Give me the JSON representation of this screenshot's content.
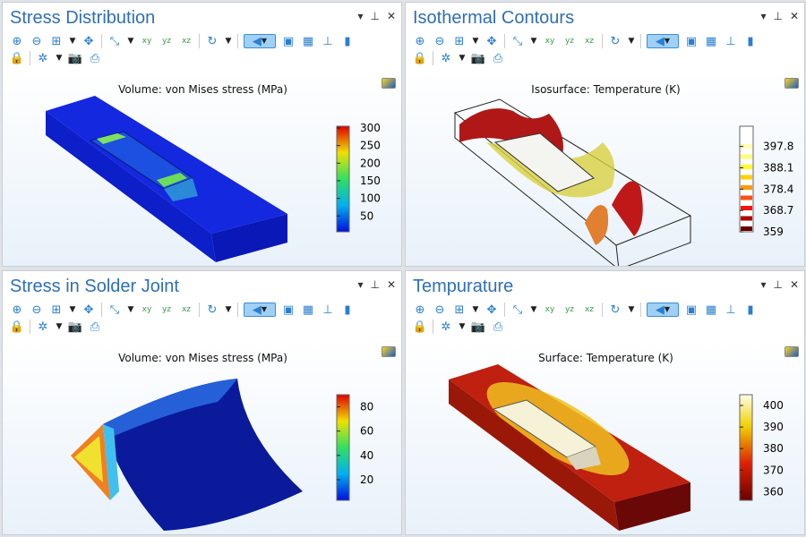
{
  "panels": [
    {
      "title": "Stress Distribution",
      "plot_title": "Volume: von Mises stress (MPa)",
      "colorbar": {
        "scheme": "rainbow",
        "min": 5,
        "max": 305,
        "ticks": [
          "300",
          "250",
          "200",
          "150",
          "100",
          "50"
        ],
        "tick_values": [
          300,
          250,
          200,
          150,
          100,
          50
        ]
      }
    },
    {
      "title": "Isothermal Contours",
      "plot_title": "Isosurface: Temperature (K)",
      "colorbar": {
        "scheme": "heat-discrete",
        "min": 359,
        "max": 407,
        "ticks": [
          "397.8",
          "388.1",
          "378.4",
          "368.7",
          "359"
        ],
        "tick_values": [
          397.8,
          388.1,
          378.4,
          368.7,
          359
        ]
      }
    },
    {
      "title": "Stress in Solder Joint",
      "plot_title": "Volume: von Mises stress (MPa)",
      "colorbar": {
        "scheme": "rainbow",
        "min": 3,
        "max": 90,
        "ticks": [
          "80",
          "60",
          "40",
          "20"
        ],
        "tick_values": [
          80,
          60,
          40,
          20
        ]
      }
    },
    {
      "title": "Tempurature",
      "plot_title": "Surface: Temperature (K)",
      "colorbar": {
        "scheme": "heat",
        "min": 356,
        "max": 405,
        "ticks": [
          "400",
          "390",
          "380",
          "370",
          "360"
        ],
        "tick_values": [
          400,
          390,
          380,
          370,
          360
        ]
      }
    }
  ],
  "toolbar_row1": [
    "zoom-in-icon",
    "zoom-out-icon",
    "zoom-box-icon",
    "dropdown",
    "zoom-extents-icon",
    "sep",
    "axes-view-icon",
    "dropdown",
    "xy-view-icon",
    "yz-view-icon",
    "xz-view-icon",
    "sep",
    "rotate-icon",
    "dropdown",
    "sep",
    "light-icon",
    "transparency-icon",
    "grid-icon",
    "axis-orientation-icon",
    "legend-icon"
  ],
  "toolbar_row2": [
    "lock-icon",
    "sep",
    "scene-light-icon",
    "dropdown",
    "camera-icon",
    "print-icon"
  ],
  "icon_glyphs": {
    "xy": "xy",
    "yz": "yz",
    "xz": "xz"
  },
  "colors": {
    "title": "#2e6fb5",
    "icon": "#2a7fd0",
    "active": "#9fd0f5"
  }
}
